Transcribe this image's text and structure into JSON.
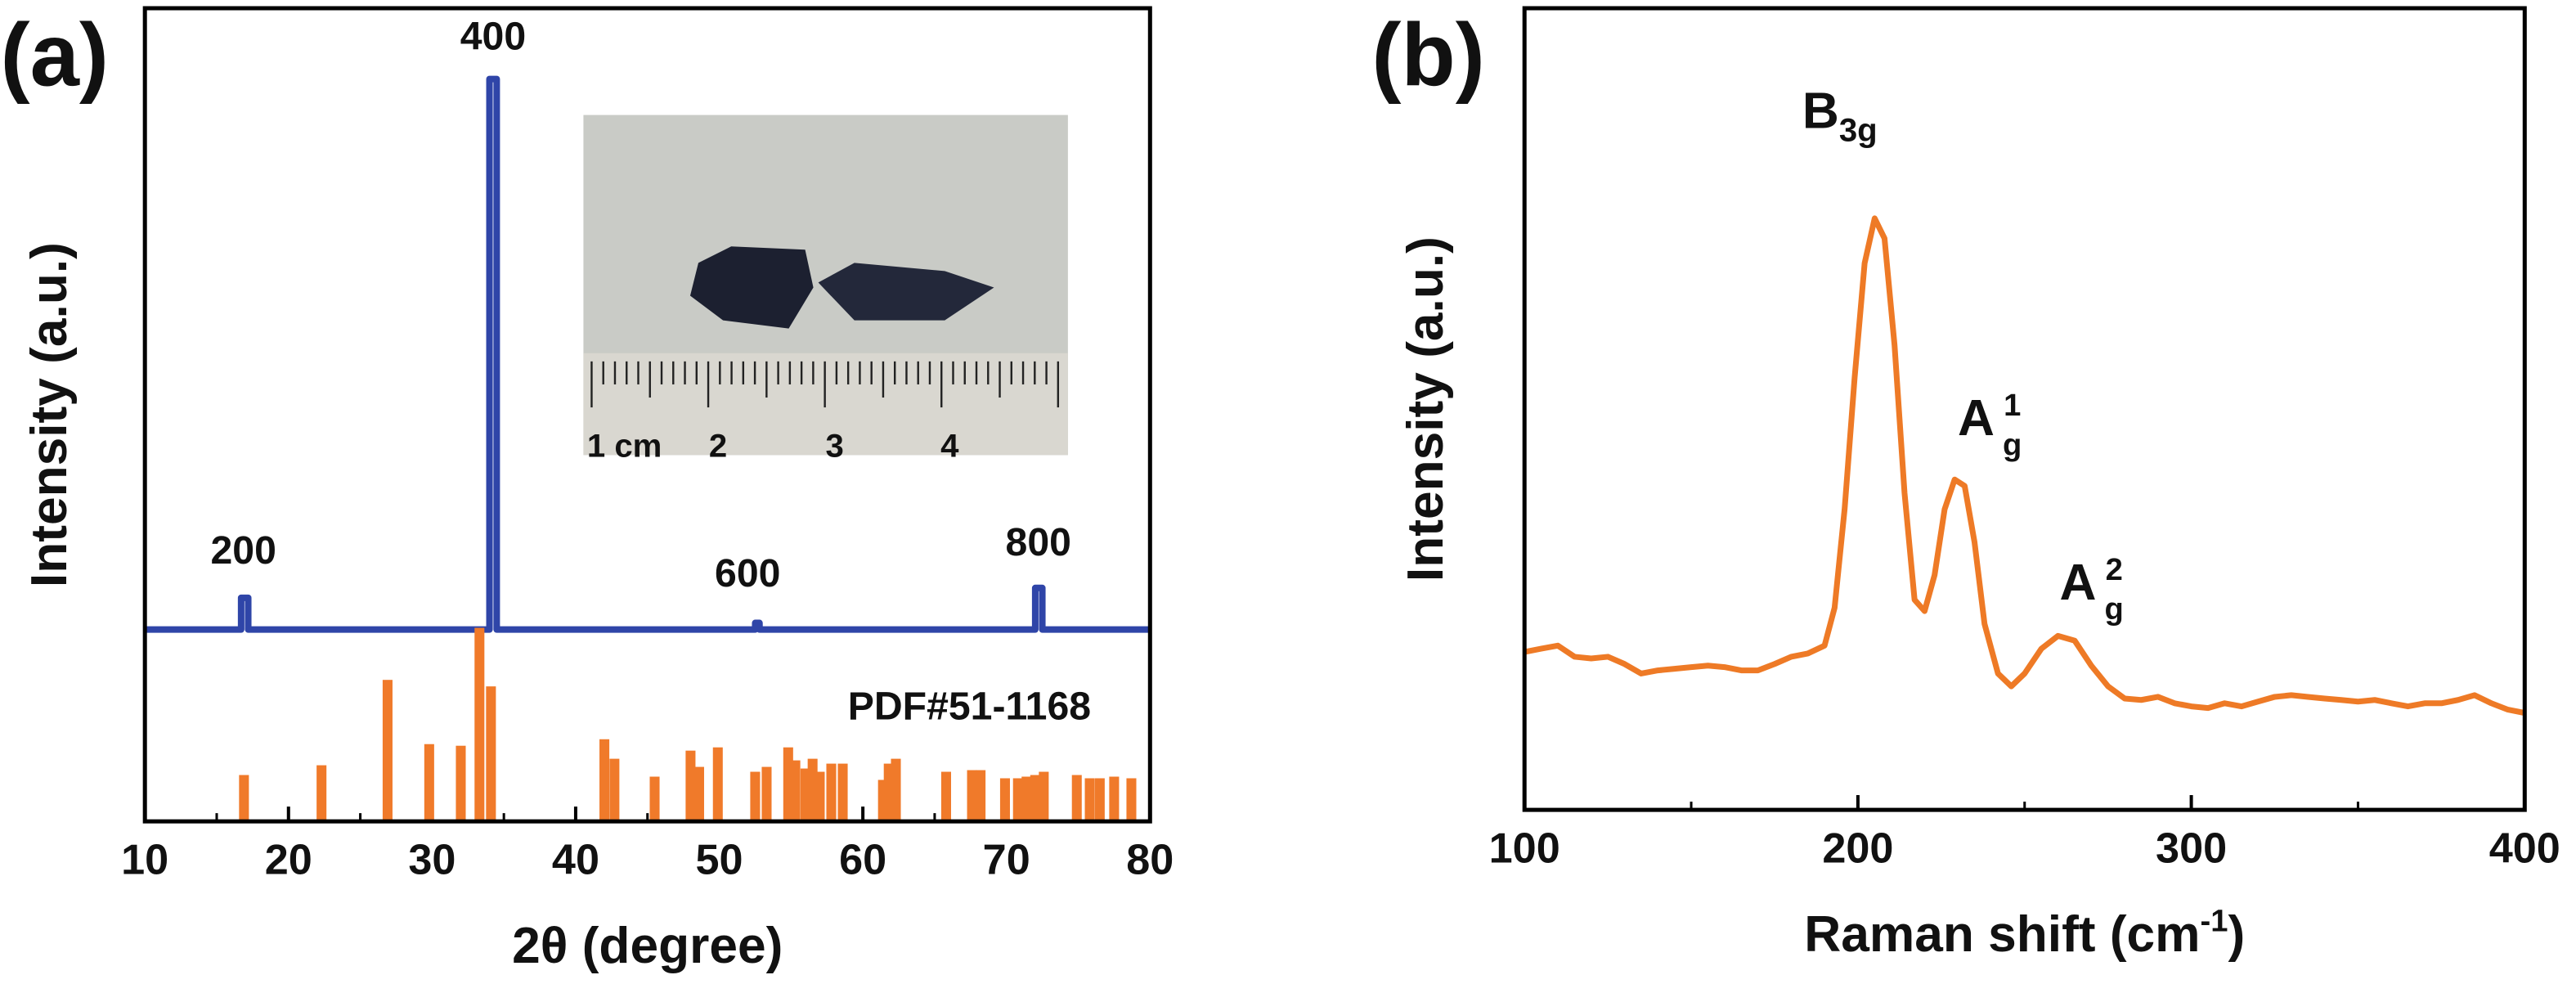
{
  "chart_data": [
    {
      "type": "bar",
      "panel_label": "(a)",
      "x_label": "2θ (degree)",
      "y_label": "Intensity (a.u.)",
      "xlim": [
        10,
        80
      ],
      "xticks": [
        10,
        20,
        30,
        40,
        50,
        60,
        70,
        80
      ],
      "xminor": [
        15,
        25,
        35,
        45,
        55,
        65,
        75
      ],
      "ylim": [
        0,
        100
      ],
      "series": [
        {
          "kind": "line",
          "color": "#2f45a8",
          "x": [
            10,
            16.7,
            16.7,
            17.2,
            17.2,
            34,
            34,
            34.5,
            34.5,
            52.5,
            52.5,
            52.8,
            52.8,
            72,
            72,
            72.5,
            72.5,
            80
          ],
          "values": [
            23.6,
            23.6,
            27.5,
            27.5,
            23.6,
            23.6,
            91.3,
            91.3,
            23.6,
            23.6,
            24.4,
            24.4,
            23.6,
            23.6,
            28.7,
            28.7,
            23.6,
            23.6
          ]
        },
        {
          "kind": "bar",
          "color": "#f07a2a",
          "x": [
            16.9,
            22.3,
            26.9,
            29.8,
            32,
            33.3,
            34.1,
            42,
            42.7,
            45.5,
            48,
            48.6,
            49.9,
            52.5,
            53.3,
            54.8,
            55.3,
            56,
            56.5,
            57,
            57.8,
            58.6,
            61.4,
            61.8,
            62.3,
            65.8,
            67.6,
            68.2,
            69.9,
            70.8,
            71.4,
            72,
            72.6,
            74.9,
            75.8,
            76.5,
            77.5,
            78.7
          ],
          "values": [
            5.7,
            6.9,
            17.4,
            9.5,
            9.3,
            23.8,
            16.6,
            10.1,
            7.7,
            5.5,
            8.7,
            6.7,
            9.1,
            6.1,
            6.7,
            9.1,
            7.5,
            6.5,
            7.7,
            6.1,
            7.1,
            7.1,
            5.1,
            7.1,
            7.7,
            6.1,
            6.3,
            6.3,
            5.3,
            5.3,
            5.5,
            5.7,
            6.1,
            5.7,
            5.3,
            5.3,
            5.5,
            5.3
          ]
        }
      ],
      "annotations": [
        {
          "text": "200"
        },
        {
          "text": "400"
        },
        {
          "text": "600"
        },
        {
          "text": "800"
        },
        {
          "text": "PDF#51-1168"
        }
      ],
      "inset": {
        "ruler_labels": [
          "1 cm",
          "2",
          "3",
          "4"
        ]
      }
    },
    {
      "type": "line",
      "panel_label": "(b)",
      "x_label": {
        "text": "Raman shift (cm",
        "sup": "-1",
        "tail": ")"
      },
      "y_label": "Intensity (a.u.)",
      "xlim": [
        100,
        400
      ],
      "xticks": [
        100,
        200,
        300,
        400
      ],
      "xminor": [
        150,
        250,
        350
      ],
      "ylim": [
        0,
        100
      ],
      "series": [
        {
          "color": "#ee7a26",
          "x": [
            100,
            105,
            110,
            115,
            120,
            125,
            130,
            135,
            140,
            145,
            150,
            155,
            160,
            165,
            170,
            175,
            180,
            185,
            190,
            193,
            196,
            199,
            202,
            205,
            208,
            211,
            214,
            217,
            220,
            223,
            226,
            229,
            232,
            235,
            238,
            242,
            246,
            250,
            255,
            260,
            265,
            270,
            275,
            280,
            285,
            290,
            295,
            300,
            305,
            310,
            315,
            320,
            325,
            330,
            335,
            340,
            345,
            350,
            355,
            360,
            365,
            370,
            375,
            380,
            385,
            390,
            395,
            400
          ],
          "values": [
            19.7,
            20.1,
            20.5,
            19.1,
            18.9,
            19.1,
            18.2,
            17.0,
            17.4,
            17.6,
            17.8,
            18.0,
            17.8,
            17.4,
            17.4,
            18.2,
            19.1,
            19.5,
            20.5,
            25.2,
            37.5,
            53.9,
            68.2,
            73.8,
            71.3,
            58.0,
            39.5,
            26.2,
            24.8,
            29.3,
            37.5,
            41.2,
            40.4,
            33.4,
            23.2,
            17.0,
            15.4,
            17.0,
            20.1,
            21.7,
            21.1,
            18.0,
            15.4,
            13.9,
            13.7,
            14.1,
            13.3,
            12.9,
            12.7,
            13.3,
            12.9,
            13.5,
            14.1,
            14.3,
            14.1,
            13.9,
            13.7,
            13.5,
            13.7,
            13.3,
            12.9,
            13.3,
            13.3,
            13.7,
            14.3,
            13.3,
            12.5,
            12.1
          ]
        }
      ],
      "annotations": [
        {
          "text": "B",
          "sub": "3g"
        },
        {
          "text": "A",
          "sub": "g",
          "sup": "1"
        },
        {
          "text": "A",
          "sub": "g",
          "sup": "2"
        }
      ]
    }
  ]
}
